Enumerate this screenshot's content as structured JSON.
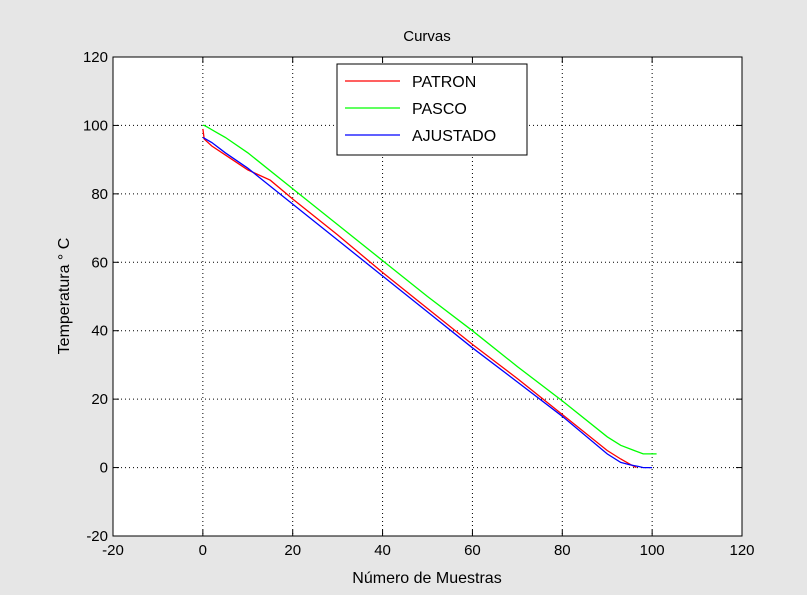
{
  "chart_data": {
    "type": "line",
    "title": "Curvas",
    "xlabel": "Número de Muestras",
    "ylabel": "Temperatura ° C",
    "xlim": [
      -20,
      120
    ],
    "ylim": [
      -20,
      120
    ],
    "xticks": [
      -20,
      0,
      20,
      40,
      60,
      80,
      100,
      120
    ],
    "yticks": [
      -20,
      0,
      20,
      40,
      60,
      80,
      100,
      120
    ],
    "grid": true,
    "legend_position": "top-center",
    "series": [
      {
        "name": "PATRON",
        "color": "#ff0000",
        "x": [
          0,
          0.3,
          2,
          6,
          10,
          15,
          20,
          30,
          40,
          50,
          60,
          70,
          80,
          90,
          93,
          95,
          96.5
        ],
        "y": [
          99,
          96,
          94,
          90.5,
          87,
          84,
          78.5,
          68,
          57,
          46.5,
          36,
          26,
          15.5,
          5,
          2.5,
          1,
          0
        ]
      },
      {
        "name": "PASCO",
        "color": "#00ff00",
        "x": [
          0,
          0.3,
          1,
          3,
          5,
          10,
          20,
          30,
          40,
          50,
          60,
          70,
          80,
          90,
          93,
          96,
          98,
          100,
          101
        ],
        "y": [
          100,
          100,
          99.5,
          98,
          96.5,
          92,
          81.5,
          71,
          60.5,
          50,
          40,
          29.5,
          19.5,
          9,
          6.5,
          5,
          4,
          4,
          4
        ]
      },
      {
        "name": "AJUSTADO",
        "color": "#0000ff",
        "x": [
          0,
          2,
          5,
          10,
          20,
          30,
          40,
          50,
          60,
          70,
          80,
          90,
          93,
          95,
          97,
          98,
          100
        ],
        "y": [
          96.5,
          95,
          92,
          87.5,
          77,
          66.5,
          56,
          45.5,
          35,
          25,
          15,
          4,
          1.5,
          0.8,
          0.3,
          0,
          0
        ]
      }
    ]
  }
}
